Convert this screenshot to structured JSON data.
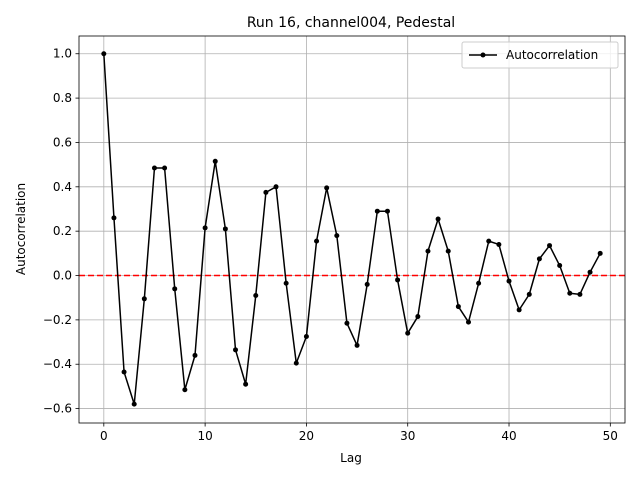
{
  "chart_data": {
    "type": "line",
    "title": "Run 16, channel004, Pedestal",
    "xlabel": "Lag",
    "ylabel": "Autocorrelation",
    "xlim": [
      -2.45,
      51.45
    ],
    "ylim": [
      -0.665,
      1.08
    ],
    "xticks": [
      0,
      10,
      20,
      30,
      40,
      50
    ],
    "yticks": [
      1.0,
      0.8,
      0.6,
      0.4,
      0.2,
      0.0,
      -0.2,
      -0.4,
      -0.6
    ],
    "xtick_labels": [
      "0",
      "10",
      "20",
      "30",
      "40",
      "50"
    ],
    "ytick_labels": [
      "1.0",
      "0.8",
      "0.6",
      "0.4",
      "0.2",
      "0.0",
      "−0.2",
      "−0.4",
      "−0.6"
    ],
    "grid": true,
    "legend_position": "top-right",
    "reference_line": {
      "y": 0.0,
      "style": "dashed",
      "color": "#ff0000"
    },
    "series": [
      {
        "name": "Autocorrelation",
        "color": "#000000",
        "marker": "circle",
        "x": [
          0,
          1,
          2,
          3,
          4,
          5,
          6,
          7,
          8,
          9,
          10,
          11,
          12,
          13,
          14,
          15,
          16,
          17,
          18,
          19,
          20,
          21,
          22,
          23,
          24,
          25,
          26,
          27,
          28,
          29,
          30,
          31,
          32,
          33,
          34,
          35,
          36,
          37,
          38,
          39,
          40,
          41,
          42,
          43,
          44,
          45,
          46,
          47,
          48,
          49
        ],
        "values": [
          1.0,
          0.26,
          -0.435,
          -0.58,
          -0.105,
          0.485,
          0.485,
          -0.06,
          -0.515,
          -0.36,
          0.215,
          0.515,
          0.21,
          -0.335,
          -0.49,
          -0.09,
          0.375,
          0.4,
          -0.035,
          -0.395,
          -0.275,
          0.155,
          0.395,
          0.18,
          -0.215,
          -0.315,
          -0.04,
          0.29,
          0.29,
          -0.02,
          -0.26,
          -0.185,
          0.11,
          0.255,
          0.11,
          -0.14,
          -0.21,
          -0.035,
          0.155,
          0.14,
          -0.025,
          -0.155,
          -0.085,
          0.075,
          0.135,
          0.045,
          -0.08,
          -0.085,
          0.015,
          0.1
        ]
      }
    ]
  }
}
